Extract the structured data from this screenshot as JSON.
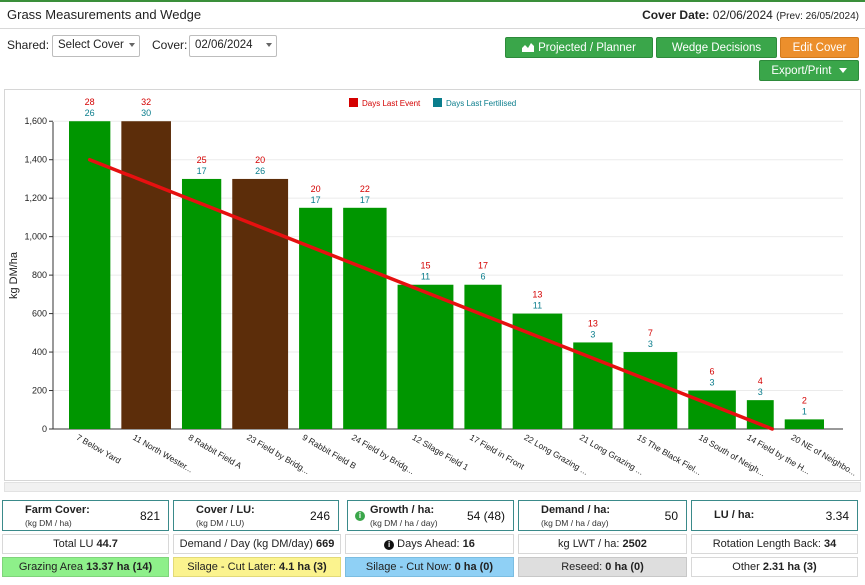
{
  "header": {
    "title": "Grass Measurements and Wedge",
    "cover_date_label": "Cover Date:",
    "cover_date_value": "02/06/2024",
    "cover_date_prev": "(Prev: 26/05/2024)"
  },
  "controls": {
    "shared_label": "Shared:",
    "shared_value": "Select Cover",
    "cover_label": "Cover:",
    "cover_value": "02/06/2024"
  },
  "buttons": {
    "projected": "Projected / Planner",
    "wedge": "Wedge Decisions",
    "edit": "Edit Cover",
    "export": "Export/Print"
  },
  "colors": {
    "bar_green": "#009600",
    "bar_brown": "#5c2d0a",
    "wedge_line": "#e61010",
    "days_event": "#d40000",
    "days_fertilised": "#0a7d8c"
  },
  "chart_data": {
    "type": "bar",
    "ylabel": "kg DM/ha",
    "ylim": [
      0,
      1700
    ],
    "yticks": [
      0,
      200,
      400,
      600,
      800,
      1000,
      1200,
      1400,
      1600
    ],
    "legend": [
      "Days Last Event",
      "Days Last Fertilised"
    ],
    "categories": [
      "7 Below Yard",
      "11 North Wester...",
      "8 Rabbit Field A",
      "23 Field by Bridg...",
      "9 Rabbit Field B",
      "24 Field by Bridg...",
      "12 Silage Field 1",
      "17 Field in Front",
      "22 Long Grazing ...",
      "21 Long Grazing ...",
      "15 The Black Fiel...",
      "18 South of Neigh...",
      "14 Field by the H...",
      "20 NE of Neighbo..."
    ],
    "values": [
      1600,
      1600,
      1300,
      1300,
      1150,
      1150,
      750,
      750,
      600,
      450,
      400,
      200,
      150,
      50
    ],
    "bar_color_type": [
      "green",
      "brown",
      "green",
      "brown",
      "green",
      "green",
      "green",
      "green",
      "green",
      "green",
      "green",
      "green",
      "green",
      "green"
    ],
    "days_last_event": [
      28,
      32,
      25,
      20,
      20,
      22,
      15,
      17,
      13,
      13,
      7,
      6,
      4,
      2
    ],
    "days_last_fertilised": [
      26,
      30,
      17,
      26,
      17,
      17,
      11,
      6,
      11,
      3,
      3,
      3,
      3,
      1
    ],
    "wedge_line": {
      "start": 1400,
      "end": 0
    }
  },
  "stats": {
    "farm_cover": {
      "label": "Farm Cover:",
      "sub": "(kg DM / ha)",
      "value": "821"
    },
    "cover_lu": {
      "label": "Cover / LU:",
      "sub": "(kg DM / LU)",
      "value": "246"
    },
    "growth": {
      "label": "Growth / ha:",
      "sub": "(kg DM / ha / day)",
      "value": "54 (48)"
    },
    "demand": {
      "label": "Demand / ha:",
      "sub": "(kg DM / ha / day)",
      "value": "50"
    },
    "lu_ha": {
      "label": "LU / ha:",
      "value": "3.34"
    }
  },
  "row2": {
    "total_lu_label": "Total LU",
    "total_lu_value": "44.7",
    "demand_day_label": "Demand / Day (kg DM/day)",
    "demand_day_value": "669",
    "days_ahead_label": "Days Ahead:",
    "days_ahead_value": "16",
    "lwt_label": "kg LWT / ha:",
    "lwt_value": "2502",
    "rotation_label": "Rotation Length Back:",
    "rotation_value": "34"
  },
  "row3": {
    "grazing_label": "Grazing Area",
    "grazing_value": "13.37 ha (14)",
    "silage_later_label": "Silage - Cut Later:",
    "silage_later_value": "4.1 ha (3)",
    "silage_now_label": "Silage - Cut Now:",
    "silage_now_value": "0 ha (0)",
    "reseed_label": "Reseed:",
    "reseed_value": "0 ha (0)",
    "other_label": "Other",
    "other_value": "2.31 ha (3)"
  }
}
